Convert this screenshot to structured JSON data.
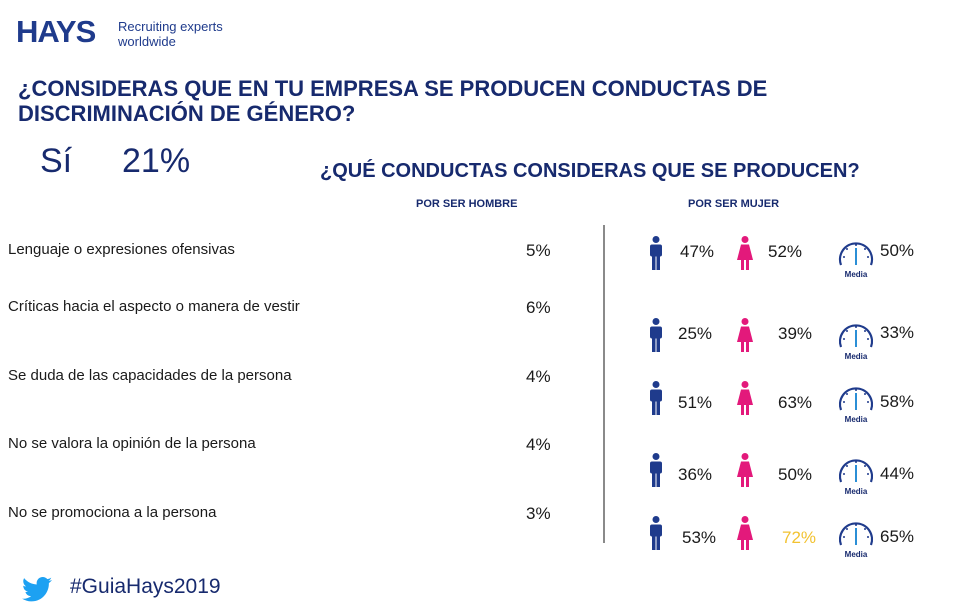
{
  "header": {
    "logo": "HAYS",
    "tagline": "Recruiting experts worldwide",
    "question": "¿CONSIDERAS QUE EN TU EMPRESA SE PRODUCEN CONDUCTAS DE DISCRIMINACIÓN DE GÉNERO?"
  },
  "yes_answer": {
    "label": "Sí",
    "value": "21%"
  },
  "subquestion": "¿QUÉ CONDUCTAS CONSIDERAS QUE SE PRODUCEN?",
  "columns": {
    "male": "POR SER HOMBRE",
    "female": "POR SER MUJER"
  },
  "gauge_caption": "Media",
  "footer": {
    "hashtag": "#GuiaHays2019",
    "icon": "twitter-bird-icon"
  },
  "colors": {
    "navy": "#172a6e",
    "male_icon": "#1f3b8c",
    "female_icon": "#e3197b",
    "highlight": "#f2c230",
    "gauge": "#2b8fd6"
  },
  "chart_data": {
    "type": "table",
    "title": "¿QUÉ CONDUCTAS CONSIDERAS QUE SE PRODUCEN?",
    "columns": [
      "POR SER HOMBRE",
      "POR SER MUJER"
    ],
    "rows": [
      {
        "behavior": "Lenguaje o expresiones ofensivas",
        "por_ser_hombre": "5%",
        "por_ser_mujer": {
          "hombres": "47%",
          "mujeres": "52%",
          "media": "50%"
        }
      },
      {
        "behavior": "Críticas hacia el aspecto o manera de vestir",
        "por_ser_hombre": "6%",
        "por_ser_mujer": {
          "hombres": "25%",
          "mujeres": "39%",
          "media": "33%"
        }
      },
      {
        "behavior": "Se duda de las capacidades de la persona",
        "por_ser_hombre": "4%",
        "por_ser_mujer": {
          "hombres": "51%",
          "mujeres": "63%",
          "media": "58%"
        }
      },
      {
        "behavior": "No se valora la opinión de la persona",
        "por_ser_hombre": "4%",
        "por_ser_mujer": {
          "hombres": "36%",
          "mujeres": "50%",
          "media": "44%"
        }
      },
      {
        "behavior": "No se promociona a la persona",
        "por_ser_hombre": "3%",
        "por_ser_mujer": {
          "hombres": "53%",
          "mujeres": "72%",
          "media": "65%"
        },
        "highlight": "mujeres"
      }
    ]
  }
}
